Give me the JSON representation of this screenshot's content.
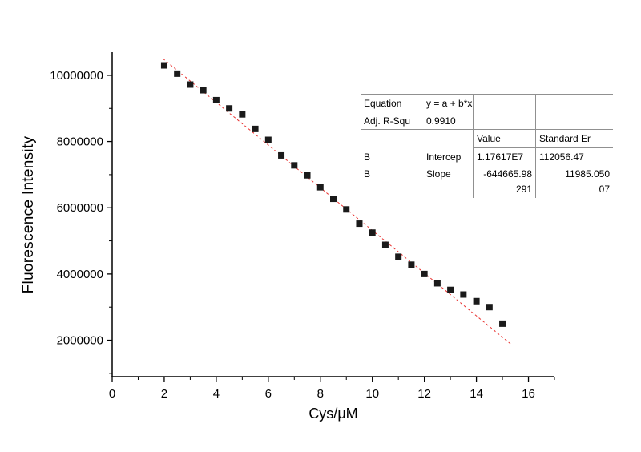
{
  "chart_data": {
    "type": "scatter",
    "title": "",
    "xlabel": "Cys/μM",
    "ylabel": "Fluorescence Intensity",
    "xlim": [
      0,
      17
    ],
    "ylim": [
      900000,
      10700000
    ],
    "x_major_ticks": [
      0,
      2,
      4,
      6,
      8,
      10,
      12,
      14,
      16
    ],
    "x_minor_ticks": [
      1,
      3,
      5,
      7,
      9,
      11,
      13,
      15,
      17
    ],
    "y_major_ticks": [
      2000000,
      4000000,
      6000000,
      8000000,
      10000000
    ],
    "y_minor_ticks": [
      1000000,
      3000000,
      5000000,
      7000000,
      9000000
    ],
    "grid": false,
    "legend": null,
    "axis_color": "#000000",
    "marker": {
      "shape": "square",
      "color": "#1a1a1a",
      "size": 8
    },
    "points": [
      [
        2,
        10300000
      ],
      [
        2.5,
        10050000
      ],
      [
        3,
        9720000
      ],
      [
        3.5,
        9550000
      ],
      [
        4,
        9250000
      ],
      [
        4.5,
        9000000
      ],
      [
        5,
        8820000
      ],
      [
        5.5,
        8380000
      ],
      [
        6,
        8050000
      ],
      [
        6.5,
        7580000
      ],
      [
        7,
        7280000
      ],
      [
        7.5,
        6980000
      ],
      [
        8,
        6620000
      ],
      [
        8.5,
        6270000
      ],
      [
        9,
        5950000
      ],
      [
        9.5,
        5520000
      ],
      [
        10,
        5250000
      ],
      [
        10.5,
        4880000
      ],
      [
        11,
        4520000
      ],
      [
        11.5,
        4280000
      ],
      [
        12,
        4000000
      ],
      [
        12.5,
        3720000
      ],
      [
        13,
        3520000
      ],
      [
        13.5,
        3380000
      ],
      [
        14,
        3180000
      ],
      [
        14.5,
        3000000
      ],
      [
        15,
        2500000
      ]
    ],
    "fit": {
      "type": "linear",
      "intercept": 11761700,
      "slope": -644665.98291,
      "x_start": 1.95,
      "x_end": 15.35,
      "color": "#e8312f",
      "dash": "3 3"
    }
  },
  "fit_table": {
    "equation_label": "Equation",
    "equation_value": "y = a + b*x",
    "rsq_label": "Adj. R-Squ",
    "rsq_value": "0.9910",
    "col_value": "Value",
    "col_stderr": "Standard Er",
    "rows": [
      {
        "c1": "B",
        "c2": "Intercep",
        "value": "1.17617E7",
        "stderr": "112056.47"
      },
      {
        "c1": "B",
        "c2": "Slope",
        "value": "-644665.98\n291",
        "stderr": "11985.050\n07"
      }
    ]
  }
}
